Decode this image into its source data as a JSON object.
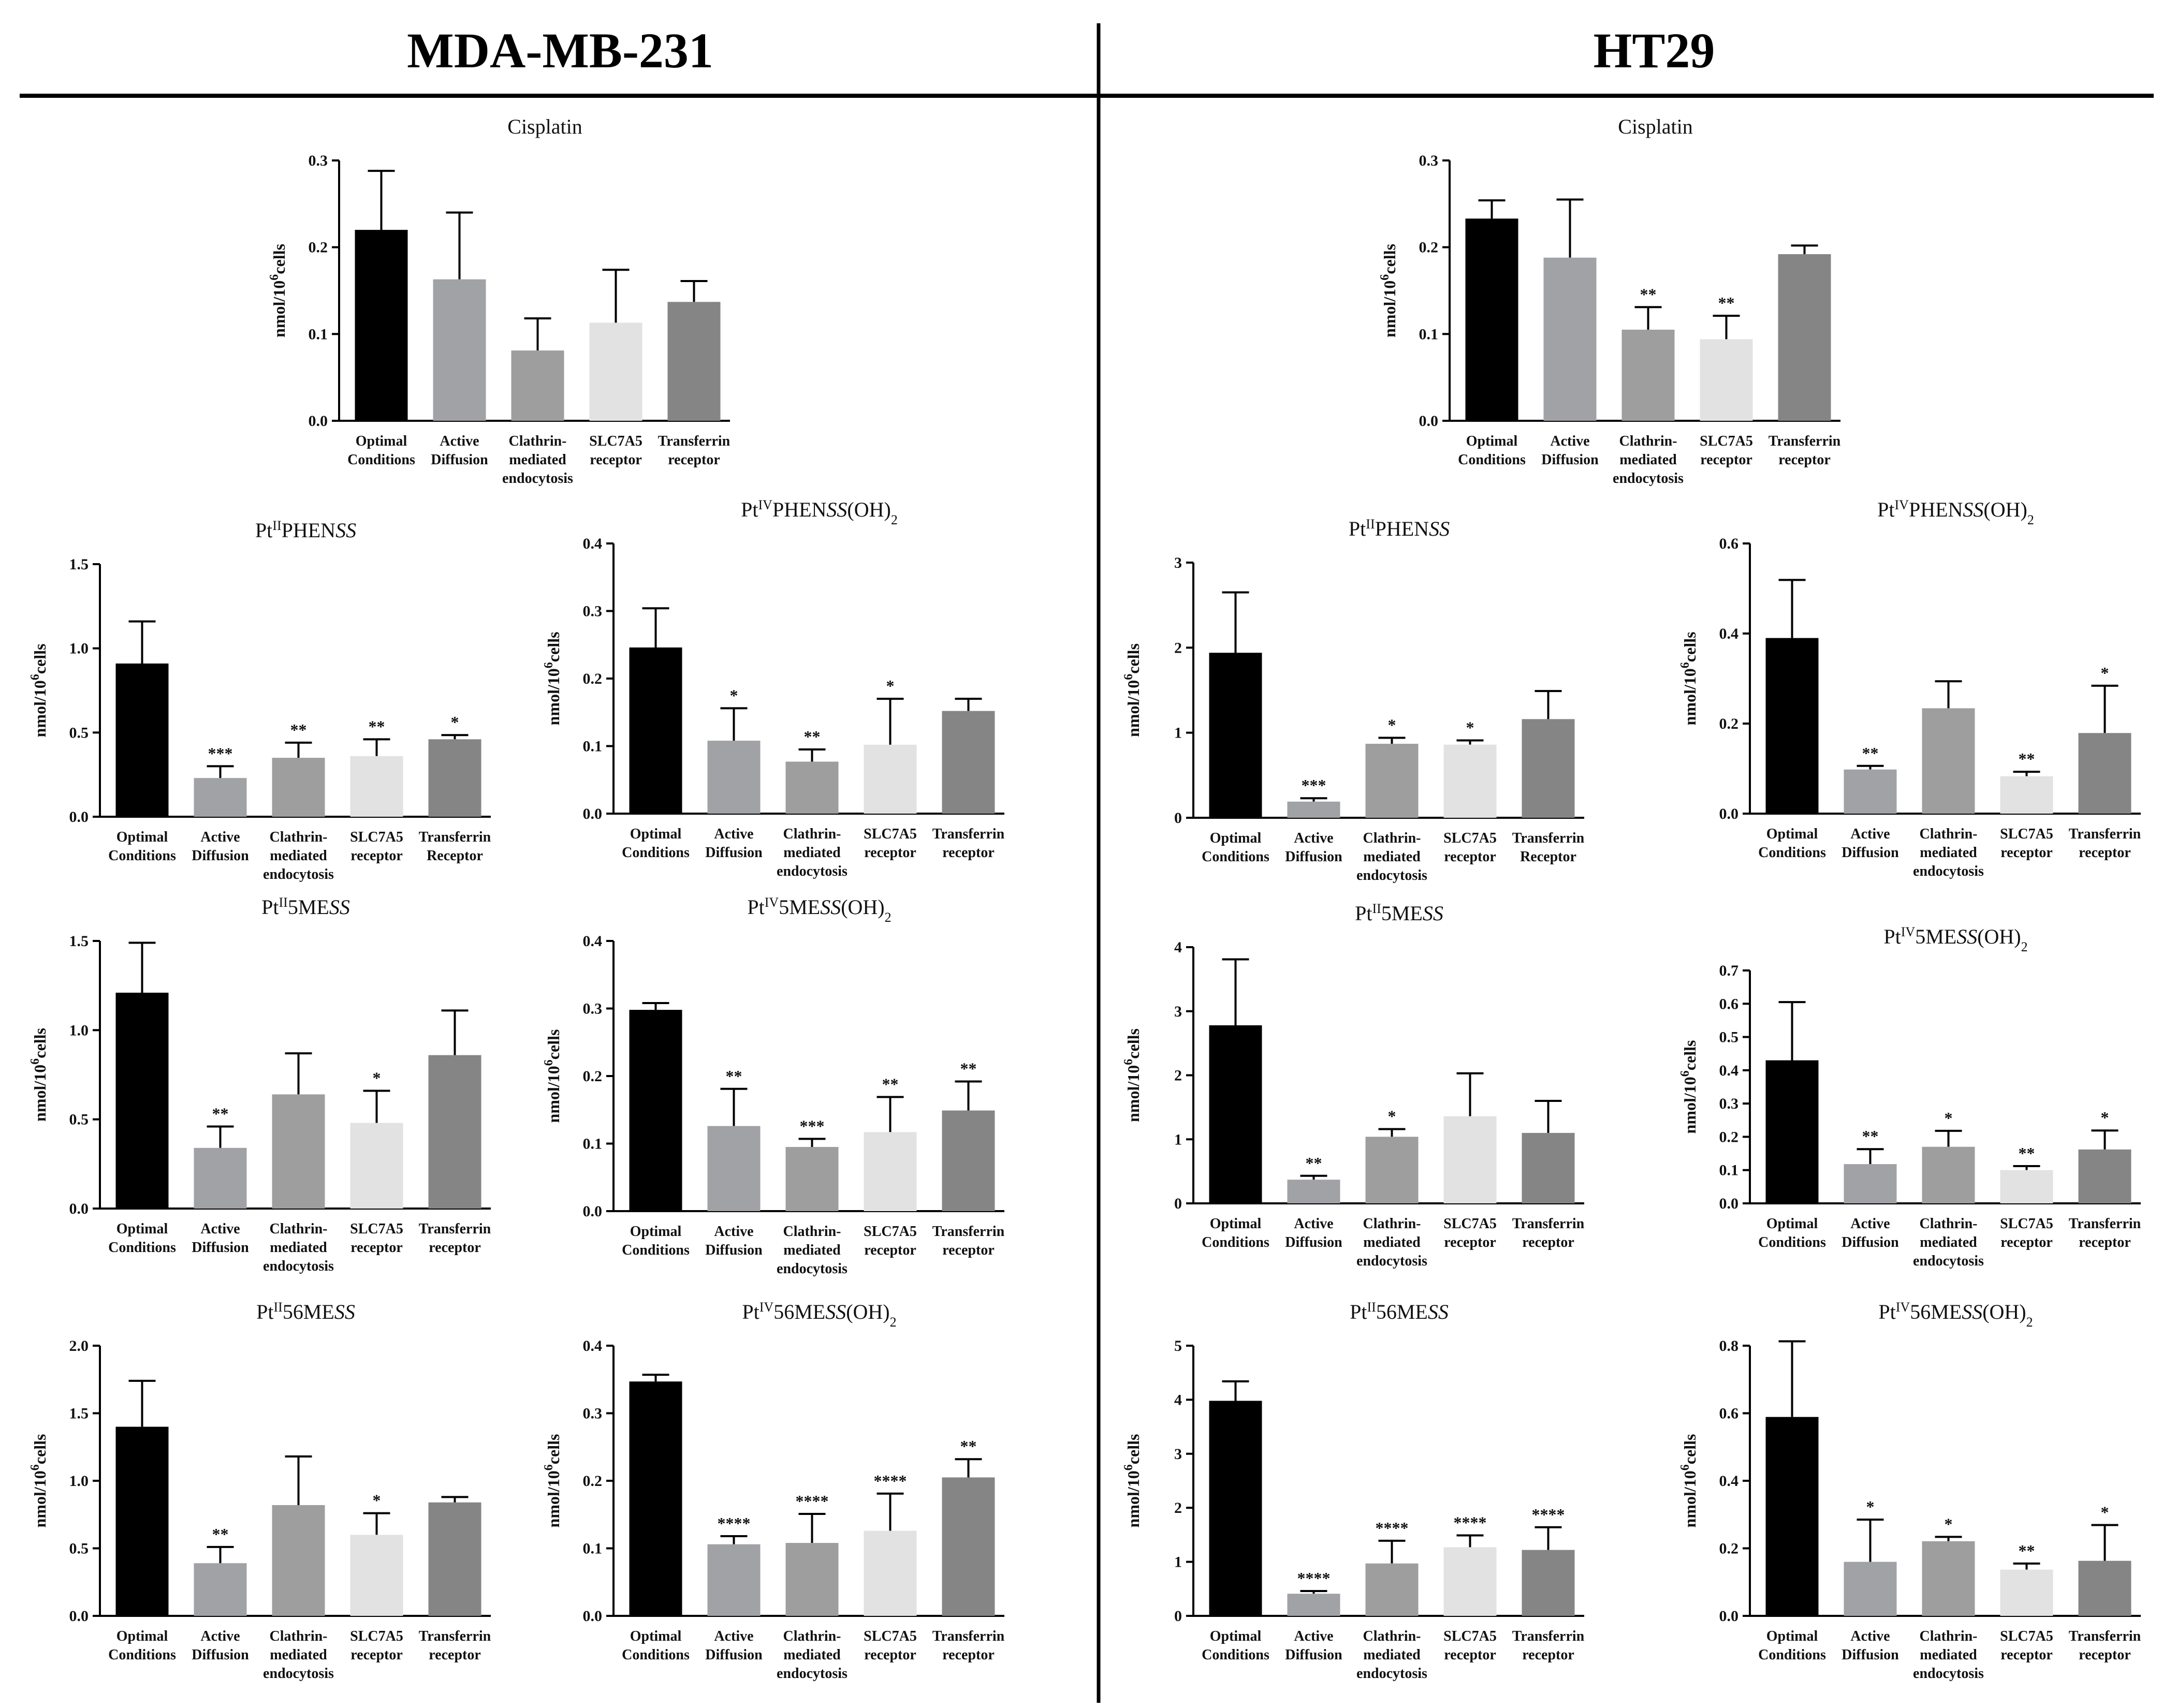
{
  "headers": {
    "left": "MDA-MB-231",
    "right": "HT29"
  },
  "colors": [
    "#000000",
    "#a1a2a6",
    "#9e9e9e",
    "#e2e2e2",
    "#858585"
  ],
  "chart_data": [
    {
      "type": "bar",
      "group": "MDA-MB-231",
      "title": "Cisplatin",
      "ylabel": "nmol/10^6cells",
      "ylim": [
        0,
        0.3
      ],
      "yticks": [
        "0.0",
        "0.1",
        "0.2",
        "0.3"
      ],
      "categories": [
        [
          "Optimal",
          "Conditions"
        ],
        [
          "Active",
          "Diffusion"
        ],
        [
          "Clathrin-",
          "mediated",
          "endocytosis"
        ],
        [
          "SLC7A5",
          "receptor"
        ],
        [
          "Transferrin",
          "receptor"
        ]
      ],
      "values": [
        0.22,
        0.163,
        0.081,
        0.113,
        0.137
      ],
      "errors": [
        0.068,
        0.077,
        0.037,
        0.061,
        0.024
      ],
      "significance": [
        "",
        "",
        "",
        "",
        ""
      ]
    },
    {
      "type": "bar",
      "group": "MDA-MB-231",
      "title": "PtIIPHENSS",
      "ylabel": "nmol/10^6cells",
      "ylim": [
        0,
        1.5
      ],
      "yticks": [
        "0.0",
        "0.5",
        "1.0",
        "1.5"
      ],
      "categories": [
        [
          "Optimal",
          "Conditions"
        ],
        [
          "Active",
          "Diffusion"
        ],
        [
          "Clathrin-",
          "mediated",
          "endocytosis"
        ],
        [
          "SLC7A5",
          "receptor"
        ],
        [
          "Transferrin",
          "Receptor"
        ]
      ],
      "values": [
        0.91,
        0.23,
        0.35,
        0.36,
        0.46
      ],
      "errors": [
        0.25,
        0.07,
        0.09,
        0.1,
        0.025
      ],
      "significance": [
        "",
        "***",
        "**",
        "**",
        "*"
      ]
    },
    {
      "type": "bar",
      "group": "MDA-MB-231",
      "title": "PtIVPHENSS(OH)2",
      "ylabel": "nmol/10^6cells",
      "ylim": [
        0,
        0.4
      ],
      "yticks": [
        "0.0",
        "0.1",
        "0.2",
        "0.3",
        "0.4"
      ],
      "categories": [
        [
          "Optimal",
          "Conditions"
        ],
        [
          "Active",
          "Diffusion"
        ],
        [
          "Clathrin-",
          "mediated",
          "endocytosis"
        ],
        [
          "SLC7A5",
          "receptor"
        ],
        [
          "Transferrin",
          "receptor"
        ]
      ],
      "values": [
        0.246,
        0.108,
        0.077,
        0.102,
        0.152
      ],
      "errors": [
        0.058,
        0.048,
        0.018,
        0.068,
        0.018
      ],
      "significance": [
        "",
        "*",
        "**",
        "*",
        ""
      ]
    },
    {
      "type": "bar",
      "group": "MDA-MB-231",
      "title": "PtII5MESS",
      "ylabel": "nmol/10^6cells",
      "ylim": [
        0,
        1.5
      ],
      "yticks": [
        "0.0",
        "0.5",
        "1.0",
        "1.5"
      ],
      "categories": [
        [
          "Optimal",
          "Conditions"
        ],
        [
          "Active",
          "Diffusion"
        ],
        [
          "Clathrin-",
          "mediated",
          "endocytosis"
        ],
        [
          "SLC7A5",
          "receptor"
        ],
        [
          "Transferrin",
          "receptor"
        ]
      ],
      "values": [
        1.21,
        0.34,
        0.64,
        0.48,
        0.86
      ],
      "errors": [
        0.28,
        0.12,
        0.23,
        0.18,
        0.25
      ],
      "significance": [
        "",
        "**",
        "",
        "*",
        ""
      ]
    },
    {
      "type": "bar",
      "group": "MDA-MB-231",
      "title": "PtIV5MESS(OH)2",
      "ylabel": "nmol/10^6cells",
      "ylim": [
        0,
        0.4
      ],
      "yticks": [
        "0.0",
        "0.1",
        "0.2",
        "0.3",
        "0.4"
      ],
      "categories": [
        [
          "Optimal",
          "Conditions"
        ],
        [
          "Active",
          "Diffusion"
        ],
        [
          "Clathrin-",
          "mediated",
          "endocytosis"
        ],
        [
          "SLC7A5",
          "receptor"
        ],
        [
          "Transferrin",
          "receptor"
        ]
      ],
      "values": [
        0.298,
        0.126,
        0.095,
        0.117,
        0.149
      ],
      "errors": [
        0.01,
        0.055,
        0.012,
        0.052,
        0.043
      ],
      "significance": [
        "",
        "**",
        "***",
        "**",
        "**"
      ]
    },
    {
      "type": "bar",
      "group": "MDA-MB-231",
      "title": "PtII56MESS",
      "ylabel": "nmol/10^6cells",
      "ylim": [
        0,
        2.0
      ],
      "yticks": [
        "0.0",
        "0.5",
        "1.0",
        "1.5",
        "2.0"
      ],
      "categories": [
        [
          "Optimal",
          "Conditions"
        ],
        [
          "Active",
          "Diffusion"
        ],
        [
          "Clathrin-",
          "mediated",
          "endocytosis"
        ],
        [
          "SLC7A5",
          "receptor"
        ],
        [
          "Transferrin",
          "receptor"
        ]
      ],
      "values": [
        1.4,
        0.39,
        0.82,
        0.6,
        0.84
      ],
      "errors": [
        0.34,
        0.12,
        0.36,
        0.16,
        0.04
      ],
      "significance": [
        "",
        "**",
        "",
        "*",
        ""
      ]
    },
    {
      "type": "bar",
      "group": "MDA-MB-231",
      "title": "PtIV56MESS(OH)2",
      "ylabel": "nmol/10^6cells",
      "ylim": [
        0,
        0.4
      ],
      "yticks": [
        "0.0",
        "0.1",
        "0.2",
        "0.3",
        "0.4"
      ],
      "categories": [
        [
          "Optimal",
          "Conditions"
        ],
        [
          "Active",
          "Diffusion"
        ],
        [
          "Clathrin-",
          "mediated",
          "endocytosis"
        ],
        [
          "SLC7A5",
          "receptor"
        ],
        [
          "Transferrin",
          "receptor"
        ]
      ],
      "values": [
        0.347,
        0.106,
        0.108,
        0.126,
        0.205
      ],
      "errors": [
        0.01,
        0.012,
        0.043,
        0.055,
        0.027
      ],
      "significance": [
        "",
        "****",
        "****",
        "****",
        "**"
      ]
    },
    {
      "type": "bar",
      "group": "HT29",
      "title": "Cisplatin",
      "ylabel": "nmol/10^6cells",
      "ylim": [
        0,
        0.3
      ],
      "yticks": [
        "0.0",
        "0.1",
        "0.2",
        "0.3"
      ],
      "categories": [
        [
          "Optimal",
          "Conditions"
        ],
        [
          "Active",
          "Diffusion"
        ],
        [
          "Clathrin-",
          "mediated",
          "endocytosis"
        ],
        [
          "SLC7A5",
          "receptor"
        ],
        [
          "Transferrin",
          "receptor"
        ]
      ],
      "values": [
        0.233,
        0.188,
        0.105,
        0.094,
        0.192
      ],
      "errors": [
        0.021,
        0.067,
        0.026,
        0.027,
        0.01
      ],
      "significance": [
        "",
        "",
        "**",
        "**",
        ""
      ]
    },
    {
      "type": "bar",
      "group": "HT29",
      "title": "PtIIPHENSS",
      "ylabel": "nmol/10^6cells",
      "ylim": [
        0,
        3
      ],
      "yticks": [
        "0",
        "1",
        "2",
        "3"
      ],
      "categories": [
        [
          "Optimal",
          "Conditions"
        ],
        [
          "Active",
          "Diffusion"
        ],
        [
          "Clathrin-",
          "mediated",
          "endocytosis"
        ],
        [
          "SLC7A5",
          "receptor"
        ],
        [
          "Transferrin",
          "Receptor"
        ]
      ],
      "values": [
        1.94,
        0.19,
        0.87,
        0.86,
        1.16
      ],
      "errors": [
        0.71,
        0.04,
        0.07,
        0.05,
        0.33
      ],
      "significance": [
        "",
        "***",
        "*",
        "*",
        ""
      ]
    },
    {
      "type": "bar",
      "group": "HT29",
      "title": "PtIVPHENSS(OH)2",
      "ylabel": "nmol/10^6cells",
      "ylim": [
        0,
        0.6
      ],
      "yticks": [
        "0.0",
        "0.2",
        "0.4",
        "0.6"
      ],
      "categories": [
        [
          "Optimal",
          "Conditions"
        ],
        [
          "Active",
          "Diffusion"
        ],
        [
          "Clathrin-",
          "mediated",
          "endocytosis"
        ],
        [
          "SLC7A5",
          "receptor"
        ],
        [
          "Transferrin",
          "receptor"
        ]
      ],
      "values": [
        0.39,
        0.098,
        0.234,
        0.083,
        0.179
      ],
      "errors": [
        0.129,
        0.008,
        0.06,
        0.01,
        0.105
      ],
      "significance": [
        "",
        "**",
        "",
        "**",
        "*"
      ]
    },
    {
      "type": "bar",
      "group": "HT29",
      "title": "PtII5MESS",
      "ylabel": "nmol/10^6cells",
      "ylim": [
        0,
        4
      ],
      "yticks": [
        "0",
        "1",
        "2",
        "3",
        "4"
      ],
      "categories": [
        [
          "Optimal",
          "Conditions"
        ],
        [
          "Active",
          "Diffusion"
        ],
        [
          "Clathrin-",
          "mediated",
          "endocytosis"
        ],
        [
          "SLC7A5",
          "receptor"
        ],
        [
          "Transferrin",
          "receptor"
        ]
      ],
      "values": [
        2.78,
        0.37,
        1.04,
        1.36,
        1.1
      ],
      "errors": [
        1.03,
        0.06,
        0.12,
        0.67,
        0.5
      ],
      "significance": [
        "",
        "**",
        "*",
        "",
        ""
      ]
    },
    {
      "type": "bar",
      "group": "HT29",
      "title": "PtIV5MESS(OH)2",
      "ylabel": "nmol/10^6cells",
      "ylim": [
        0,
        0.7
      ],
      "yticks": [
        "0.0",
        "0.1",
        "0.2",
        "0.3",
        "0.4",
        "0.5",
        "0.6",
        "0.7"
      ],
      "categories": [
        [
          "Optimal",
          "Conditions"
        ],
        [
          "Active",
          "Diffusion"
        ],
        [
          "Clathrin-",
          "mediated",
          "endocytosis"
        ],
        [
          "SLC7A5",
          "receptor"
        ],
        [
          "Transferrin",
          "receptor"
        ]
      ],
      "values": [
        0.43,
        0.118,
        0.17,
        0.1,
        0.162
      ],
      "errors": [
        0.175,
        0.045,
        0.048,
        0.012,
        0.057
      ],
      "significance": [
        "",
        "**",
        "*",
        "**",
        "*"
      ]
    },
    {
      "type": "bar",
      "group": "HT29",
      "title": "PtII56MESS",
      "ylabel": "nmol/10^6cells",
      "ylim": [
        0,
        5
      ],
      "yticks": [
        "0",
        "1",
        "2",
        "3",
        "4",
        "5"
      ],
      "categories": [
        [
          "Optimal",
          "Conditions"
        ],
        [
          "Active",
          "Diffusion"
        ],
        [
          "Clathrin-",
          "mediated",
          "endocytosis"
        ],
        [
          "SLC7A5",
          "receptor"
        ],
        [
          "Transferrin",
          "receptor"
        ]
      ],
      "values": [
        3.98,
        0.41,
        0.97,
        1.27,
        1.22
      ],
      "errors": [
        0.36,
        0.05,
        0.42,
        0.22,
        0.42
      ],
      "significance": [
        "",
        "****",
        "****",
        "****",
        "****"
      ]
    },
    {
      "type": "bar",
      "group": "HT29",
      "title": "PtIV56MESS(OH)2",
      "ylabel": "nmol/10^6cells",
      "ylim": [
        0,
        0.8
      ],
      "yticks": [
        "0.0",
        "0.2",
        "0.4",
        "0.6",
        "0.8"
      ],
      "categories": [
        [
          "Optimal",
          "Conditions"
        ],
        [
          "Active",
          "Diffusion"
        ],
        [
          "Clathrin-",
          "mediated",
          "endocytosis"
        ],
        [
          "SLC7A5",
          "receptor"
        ],
        [
          "Transferrin",
          "receptor"
        ]
      ],
      "values": [
        0.589,
        0.16,
        0.221,
        0.137,
        0.163
      ],
      "errors": [
        0.224,
        0.125,
        0.013,
        0.018,
        0.106
      ],
      "significance": [
        "",
        "*",
        "*",
        "**",
        "*"
      ]
    }
  ]
}
